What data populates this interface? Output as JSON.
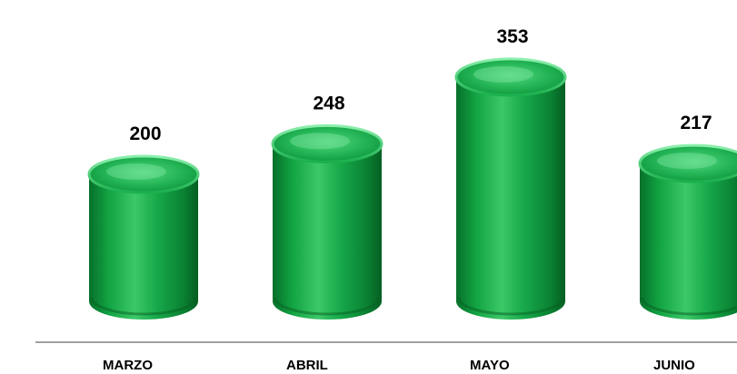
{
  "chart_data": {
    "type": "bar",
    "bar_style": "3d-cylinder",
    "categories": [
      "MARZO",
      "ABRIL",
      "MAYO",
      "JUNIO"
    ],
    "values": [
      200,
      248,
      353,
      217
    ],
    "title": "",
    "xlabel": "",
    "ylabel": "",
    "grid": false,
    "legend": "none",
    "colors": {
      "bar_main": "#0e9a3e",
      "bar_light": "#4fd67c",
      "bar_dark": "#066b27",
      "top_light": "#6ee898",
      "top_dark": "#13a647",
      "axis_line": "#808080",
      "label_text": "#000000"
    }
  }
}
